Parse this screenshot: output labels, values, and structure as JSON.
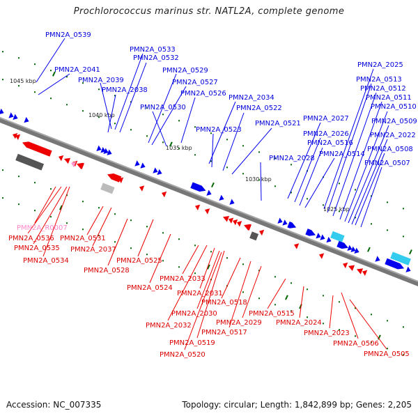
{
  "title": "Prochlorococcus marinus str. NATL2A, complete genome",
  "footer": {
    "accession": "Accession: NC_007335",
    "summary": "Topology: circular; Length: 1,842,899 bp; Genes: 2,205"
  },
  "colors": {
    "forward_gene": "#0000ee",
    "reverse_gene": "#ee0000",
    "rna_gene": "#ff99cc",
    "pseudo_dark": "#555555",
    "pseudo_light": "#bbbbbb",
    "cyan_feature": "#33ccee",
    "tick": "#006600",
    "backbone": "#777777"
  },
  "scale_labels": [
    "1045 kbp",
    "1040 kbp",
    "1035 kbp",
    "1030 kbp",
    "1025 kbp"
  ],
  "forward_labels": [
    "PMN2A_0539",
    "PMN2A_2041",
    "PMN2A_2039",
    "PMN2A_0533",
    "PMN2A_0532",
    "PMN2A_2038",
    "PMN2A_0529",
    "PMN2A_0527",
    "PMN2A_0526",
    "PMN2A_0530",
    "PMN2A_2034",
    "PMN2A_0522",
    "PMN2A_0523",
    "PMN2A_0521",
    "PMN2A_2027",
    "PMN2A_2026",
    "PMN2A_0516",
    "PMN2A_2028",
    "PMN2A_0514",
    "PMN2A_2025",
    "PMN2A_0513",
    "PMN2A_0512",
    "PMN2A_0511",
    "PMN2A_0510",
    "PMN2A_0509",
    "PMN2A_2022",
    "PMN2A_0508",
    "PMN2A_0507"
  ],
  "reverse_labels": [
    "PMN2A_R0007",
    "PMN2A_0536",
    "PMN2A_0535",
    "PMN2A_0534",
    "PMN2A_0531",
    "PMN2A_2037",
    "PMN2A_0528",
    "PMN2A_0525",
    "PMN2A_0524",
    "PMN2A_2033",
    "PMN2A_2031",
    "PMN2A_0518",
    "PMN2A_2030",
    "PMN2A_2032",
    "PMN2A_2029",
    "PMN2A_0517",
    "PMN2A_0519",
    "PMN2A_0520",
    "PMN2A_0515",
    "PMN2A_2024",
    "PMN2A_2023",
    "PMN2A_0506",
    "PMN2A_0505"
  ]
}
